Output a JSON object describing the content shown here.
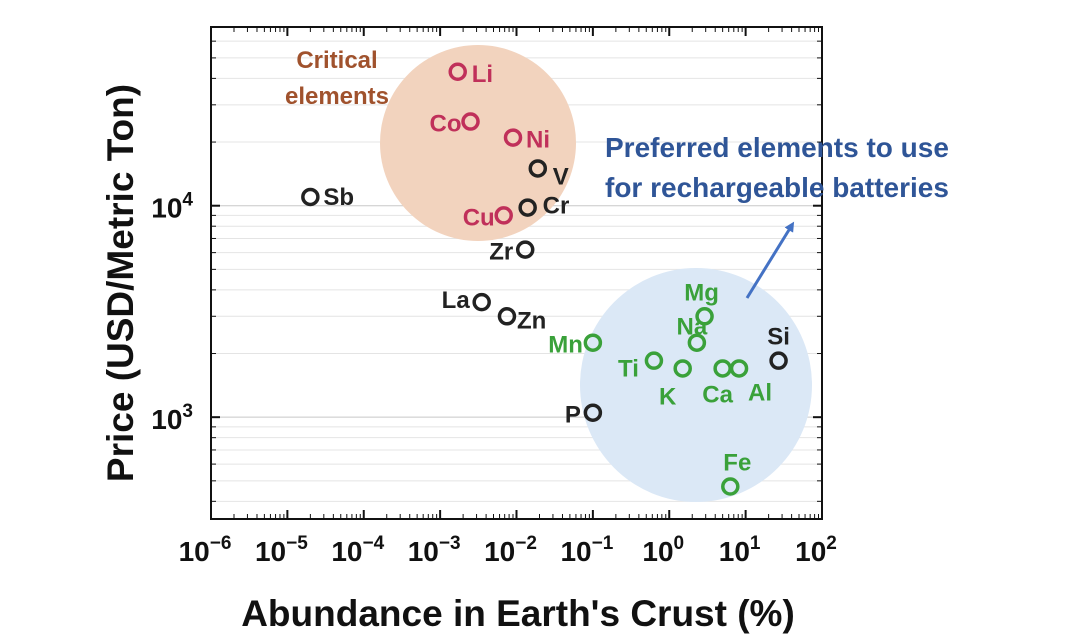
{
  "chart_data": {
    "type": "scatter",
    "xscale": "log",
    "yscale": "log",
    "xlim": [
      1e-06,
      100
    ],
    "ylim": [
      330,
      70000
    ],
    "grid": "horizontal minor",
    "xlabel": "Abundance in Earth's Crust (%)",
    "ylabel": "Price (USD/Metric Ton)",
    "x_ticks": [
      {
        "base": "10",
        "exp": "−6"
      },
      {
        "base": "10",
        "exp": "−5"
      },
      {
        "base": "10",
        "exp": "−4"
      },
      {
        "base": "10",
        "exp": "−3"
      },
      {
        "base": "10",
        "exp": "−2"
      },
      {
        "base": "10",
        "exp": "−1"
      },
      {
        "base": "10",
        "exp": "0"
      },
      {
        "base": "10",
        "exp": "1"
      },
      {
        "base": "10",
        "exp": "2"
      }
    ],
    "y_ticks": [
      {
        "value": 1000,
        "base": "10",
        "exp": "3"
      },
      {
        "value": 10000,
        "base": "10",
        "exp": "4"
      }
    ],
    "groups": [
      {
        "label": "Critical elements",
        "color": "#a0522d",
        "fill": "#f2d3be"
      },
      {
        "label": "Preferred elements to use for rechargeable batteries",
        "color": "#2f5597",
        "fill": "#dbe8f6"
      }
    ],
    "points": [
      {
        "element": "Li",
        "x": 0.0017,
        "y": 43000,
        "group": "critical",
        "color": "#c0305a"
      },
      {
        "element": "Co",
        "x": 0.0025,
        "y": 25000,
        "group": "critical",
        "color": "#c0305a"
      },
      {
        "element": "Ni",
        "x": 0.009,
        "y": 21000,
        "group": "critical",
        "color": "#c0305a"
      },
      {
        "element": "Cu",
        "x": 0.0068,
        "y": 9000,
        "group": "critical",
        "color": "#c0305a"
      },
      {
        "element": "V",
        "x": 0.019,
        "y": 15000,
        "group": "other",
        "color": "#222222"
      },
      {
        "element": "Cr",
        "x": 0.014,
        "y": 9800,
        "group": "other",
        "color": "#222222"
      },
      {
        "element": "Sb",
        "x": 2e-05,
        "y": 11000,
        "group": "other",
        "color": "#222222"
      },
      {
        "element": "Zr",
        "x": 0.013,
        "y": 6200,
        "group": "other",
        "color": "#222222"
      },
      {
        "element": "La",
        "x": 0.0035,
        "y": 3500,
        "group": "other",
        "color": "#222222"
      },
      {
        "element": "Zn",
        "x": 0.0075,
        "y": 3000,
        "group": "other",
        "color": "#222222"
      },
      {
        "element": "P",
        "x": 0.1,
        "y": 1050,
        "group": "other",
        "color": "#222222"
      },
      {
        "element": "Si",
        "x": 27,
        "y": 1850,
        "group": "other",
        "color": "#222222"
      },
      {
        "element": "Mn",
        "x": 0.1,
        "y": 2250,
        "group": "preferred",
        "color": "#3aa13a"
      },
      {
        "element": "Mg",
        "x": 2.9,
        "y": 3000,
        "group": "preferred",
        "color": "#3aa13a"
      },
      {
        "element": "Na",
        "x": 2.3,
        "y": 2250,
        "group": "preferred",
        "color": "#3aa13a"
      },
      {
        "element": "Ti",
        "x": 0.63,
        "y": 1850,
        "group": "preferred",
        "color": "#3aa13a"
      },
      {
        "element": "K",
        "x": 1.5,
        "y": 1700,
        "group": "preferred",
        "color": "#3aa13a"
      },
      {
        "element": "Ca",
        "x": 5.0,
        "y": 1700,
        "group": "preferred",
        "color": "#3aa13a"
      },
      {
        "element": "Al",
        "x": 8.2,
        "y": 1700,
        "group": "preferred",
        "color": "#3aa13a"
      },
      {
        "element": "Fe",
        "x": 6.3,
        "y": 470,
        "group": "preferred",
        "color": "#3aa13a"
      }
    ]
  }
}
